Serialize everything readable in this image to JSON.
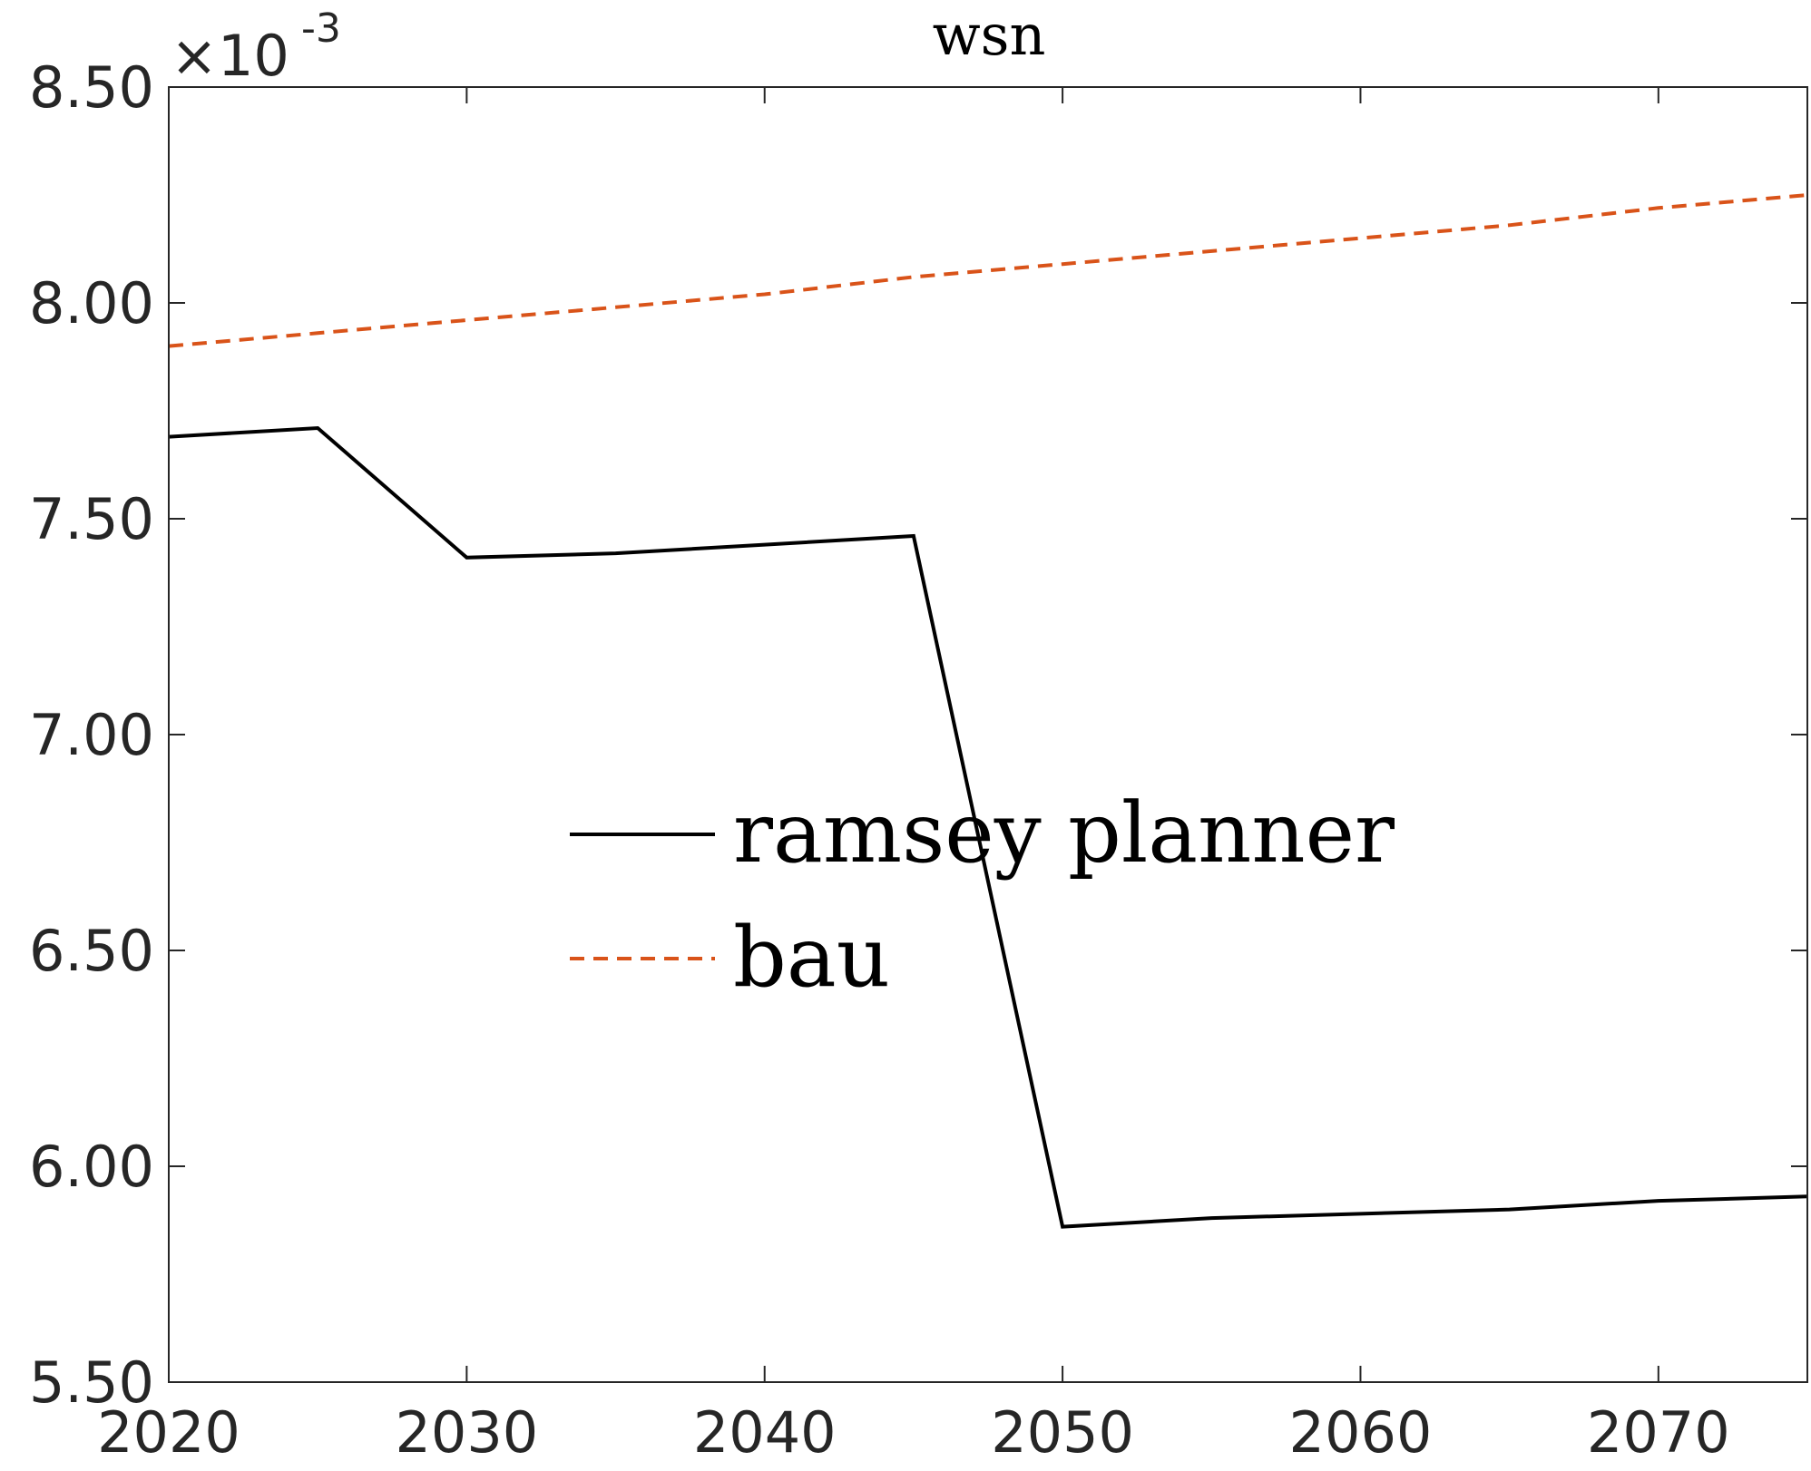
{
  "chart_data": {
    "type": "line",
    "title": "wsn",
    "xlabel": "",
    "ylabel": "",
    "y_multiplier": {
      "base": "×10",
      "exponent": "-3"
    },
    "xlim": [
      2020,
      2075
    ],
    "ylim": [
      5.5,
      8.5
    ],
    "x_ticks": [
      2020,
      2030,
      2040,
      2050,
      2060,
      2070
    ],
    "x_tick_labels": [
      "2020",
      "2030",
      "2040",
      "2050",
      "2060",
      "2070"
    ],
    "y_ticks": [
      5.5,
      6.0,
      6.5,
      7.0,
      7.5,
      8.0,
      8.5
    ],
    "y_tick_labels": [
      "5.50",
      "6.00",
      "6.50",
      "7.00",
      "7.50",
      "8.00",
      "8.50"
    ],
    "grid": false,
    "legend_position": "center",
    "series": [
      {
        "name": "ramsey planner",
        "color": "#000000",
        "style": "solid",
        "x": [
          2020,
          2025,
          2030,
          2035,
          2040,
          2045,
          2050,
          2055,
          2060,
          2065,
          2070,
          2075
        ],
        "y": [
          7.69,
          7.71,
          7.41,
          7.42,
          7.44,
          7.46,
          5.86,
          5.88,
          5.89,
          5.9,
          5.92,
          5.93
        ]
      },
      {
        "name": "bau",
        "color": "#D95319",
        "style": "dashed",
        "x": [
          2020,
          2025,
          2030,
          2035,
          2040,
          2045,
          2050,
          2055,
          2060,
          2065,
          2070,
          2075
        ],
        "y": [
          7.9,
          7.93,
          7.96,
          7.99,
          8.02,
          8.06,
          8.09,
          8.12,
          8.15,
          8.18,
          8.22,
          8.25
        ]
      }
    ]
  }
}
